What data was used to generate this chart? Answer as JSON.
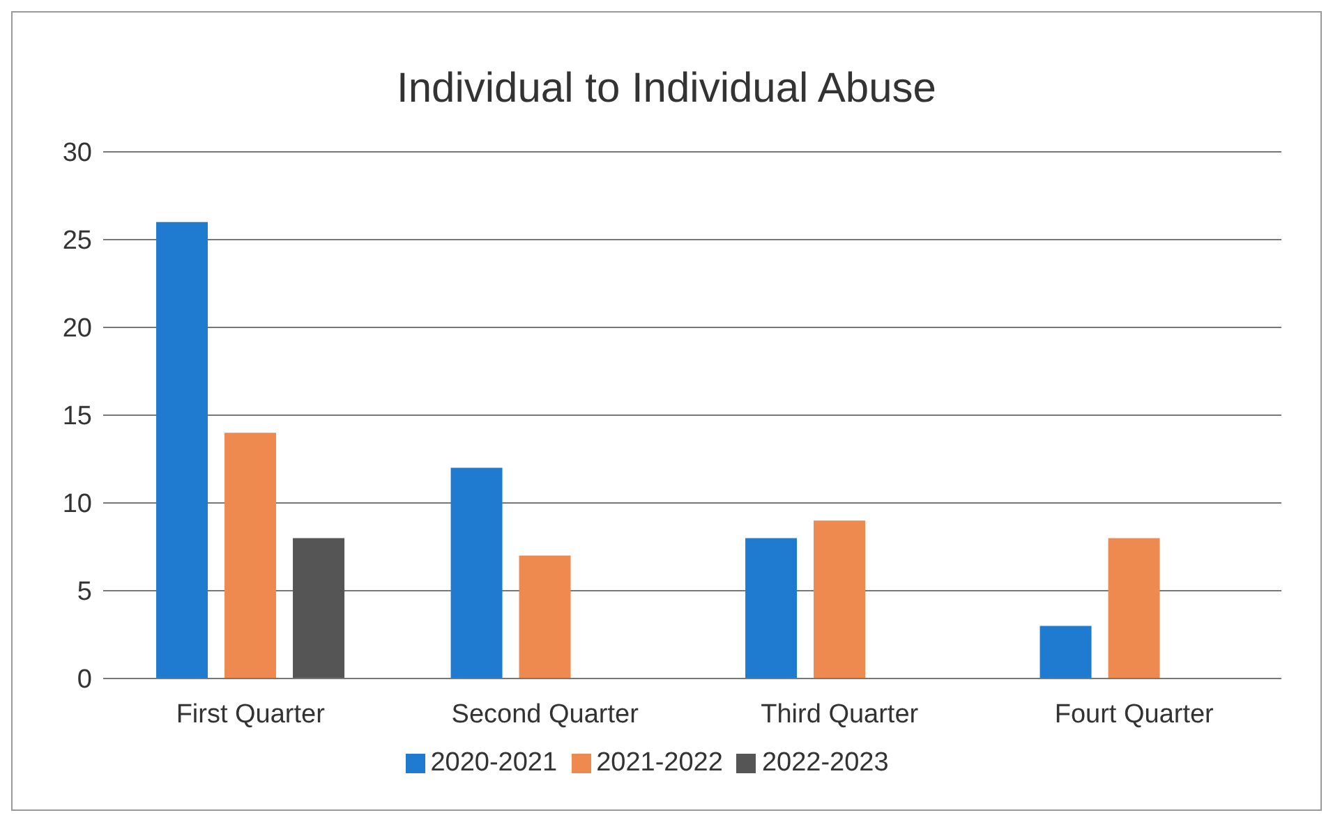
{
  "chart_data": {
    "type": "bar",
    "title": "Individual to Individual Abuse",
    "categories": [
      "First Quarter",
      "Second Quarter",
      "Third Quarter",
      "Fourt Quarter"
    ],
    "series": [
      {
        "name": "2020-2021",
        "color": "#1f7bd0",
        "values": [
          26,
          12,
          8,
          3
        ]
      },
      {
        "name": "2021-2022",
        "color": "#ee8a4f",
        "values": [
          14,
          7,
          9,
          8
        ]
      },
      {
        "name": "2022-2023",
        "color": "#555555",
        "values": [
          8,
          null,
          null,
          null
        ]
      }
    ],
    "ylim": [
      0,
      30
    ],
    "yticks": [
      0,
      5,
      10,
      15,
      20,
      25,
      30
    ],
    "grid": "y",
    "legend": "bottom"
  }
}
